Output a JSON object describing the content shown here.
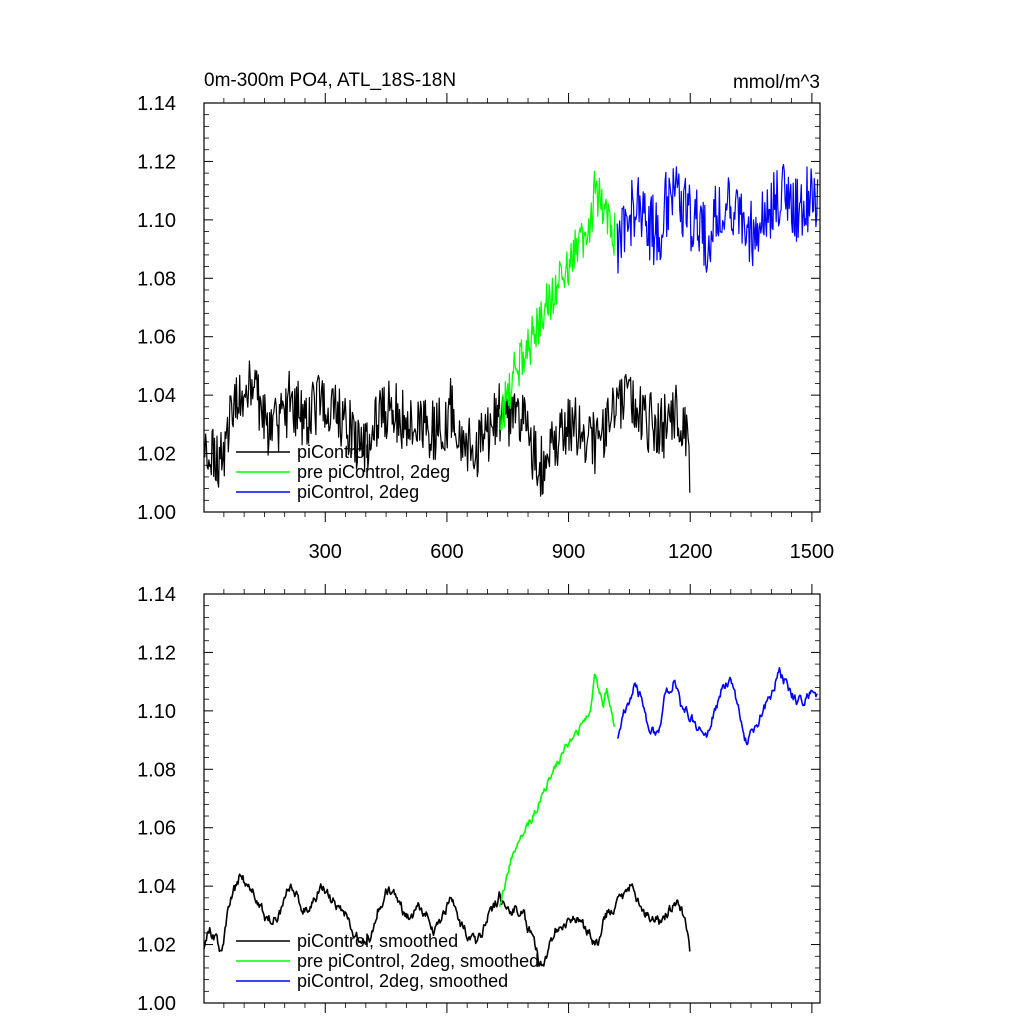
{
  "chart_data": [
    {
      "type": "line",
      "title": "0m-300m PO4, ATL_18S-18N",
      "units": "mmol/m^3",
      "xlim": [
        1,
        1520
      ],
      "ylim": [
        1.0,
        1.14
      ],
      "x_ticks": [
        300,
        600,
        900,
        1200,
        1500
      ],
      "y_ticks": [
        "1.00",
        "1.02",
        "1.04",
        "1.06",
        "1.08",
        "1.10",
        "1.12",
        "1.14"
      ],
      "show_x_tick_labels": true,
      "legend_position": "bottom-left",
      "grid": false,
      "series": [
        {
          "name": "piControl",
          "color": "#000000",
          "noise": 0.011,
          "x": [
            1,
            15,
            30,
            45,
            60,
            75,
            90,
            110,
            130,
            150,
            170,
            190,
            210,
            230,
            250,
            270,
            290,
            310,
            330,
            350,
            370,
            390,
            410,
            430,
            450,
            470,
            490,
            510,
            530,
            550,
            570,
            590,
            610,
            630,
            650,
            670,
            690,
            710,
            730,
            750,
            770,
            790,
            810,
            830,
            850,
            870,
            890,
            910,
            930,
            950,
            970,
            990,
            1010,
            1030,
            1050,
            1070,
            1090,
            1110,
            1130,
            1150,
            1170,
            1190,
            1200
          ],
          "values": [
            1.02,
            1.025,
            1.02,
            1.018,
            1.03,
            1.035,
            1.04,
            1.042,
            1.038,
            1.032,
            1.028,
            1.03,
            1.038,
            1.035,
            1.032,
            1.034,
            1.04,
            1.035,
            1.032,
            1.03,
            1.025,
            1.022,
            1.025,
            1.03,
            1.035,
            1.036,
            1.032,
            1.03,
            1.033,
            1.03,
            1.026,
            1.03,
            1.035,
            1.028,
            1.024,
            1.02,
            1.025,
            1.03,
            1.035,
            1.03,
            1.032,
            1.03,
            1.022,
            1.015,
            1.02,
            1.025,
            1.028,
            1.03,
            1.028,
            1.025,
            1.022,
            1.03,
            1.032,
            1.035,
            1.038,
            1.035,
            1.03,
            1.03,
            1.028,
            1.032,
            1.035,
            1.025,
            1.012
          ]
        },
        {
          "name": "pre piControl, 2deg",
          "color": "#00ff00",
          "noise": 0.008,
          "x": [
            730,
            745,
            760,
            775,
            790,
            805,
            820,
            835,
            850,
            865,
            880,
            895,
            910,
            925,
            940,
            955,
            965,
            975,
            985,
            995,
            1005,
            1015
          ],
          "values": [
            1.032,
            1.038,
            1.045,
            1.05,
            1.055,
            1.058,
            1.063,
            1.068,
            1.072,
            1.076,
            1.08,
            1.084,
            1.088,
            1.09,
            1.092,
            1.1,
            1.112,
            1.108,
            1.104,
            1.102,
            1.1,
            1.094
          ]
        },
        {
          "name": "piControl, 2deg",
          "color": "#0000ff",
          "noise": 0.012,
          "x": [
            1020,
            1040,
            1060,
            1080,
            1100,
            1120,
            1140,
            1160,
            1180,
            1200,
            1220,
            1240,
            1260,
            1280,
            1300,
            1320,
            1340,
            1360,
            1380,
            1400,
            1420,
            1440,
            1460,
            1480,
            1500,
            1515
          ],
          "values": [
            1.093,
            1.098,
            1.104,
            1.105,
            1.098,
            1.095,
            1.105,
            1.11,
            1.106,
            1.1,
            1.098,
            1.092,
            1.1,
            1.104,
            1.106,
            1.102,
            1.096,
            1.095,
            1.098,
            1.104,
            1.11,
            1.106,
            1.104,
            1.106,
            1.108,
            1.104
          ]
        }
      ]
    },
    {
      "type": "line",
      "title": "",
      "units": "",
      "xlim": [
        1,
        1520
      ],
      "ylim": [
        1.0,
        1.14
      ],
      "x_ticks": [
        300,
        600,
        900,
        1200,
        1500
      ],
      "y_ticks": [
        "1.00",
        "1.02",
        "1.04",
        "1.06",
        "1.08",
        "1.10",
        "1.12",
        "1.14"
      ],
      "show_x_tick_labels": false,
      "legend_position": "bottom-left",
      "grid": false,
      "series": [
        {
          "name": "piControl, smoothed",
          "color": "#000000",
          "noise": 0.004,
          "x": [
            1,
            15,
            30,
            45,
            60,
            75,
            90,
            110,
            130,
            150,
            170,
            190,
            210,
            230,
            250,
            270,
            290,
            310,
            330,
            350,
            370,
            390,
            410,
            430,
            450,
            470,
            490,
            510,
            530,
            550,
            570,
            590,
            610,
            630,
            650,
            670,
            690,
            710,
            730,
            750,
            770,
            790,
            810,
            830,
            850,
            870,
            890,
            910,
            930,
            950,
            970,
            990,
            1010,
            1030,
            1050,
            1070,
            1090,
            1110,
            1130,
            1150,
            1170,
            1190,
            1200
          ],
          "values": [
            1.02,
            1.025,
            1.022,
            1.016,
            1.032,
            1.038,
            1.044,
            1.04,
            1.036,
            1.03,
            1.028,
            1.032,
            1.04,
            1.036,
            1.032,
            1.035,
            1.04,
            1.036,
            1.033,
            1.03,
            1.024,
            1.02,
            1.022,
            1.032,
            1.038,
            1.037,
            1.032,
            1.029,
            1.034,
            1.03,
            1.025,
            1.029,
            1.036,
            1.028,
            1.023,
            1.02,
            1.025,
            1.032,
            1.037,
            1.031,
            1.033,
            1.03,
            1.022,
            1.013,
            1.018,
            1.025,
            1.028,
            1.03,
            1.027,
            1.024,
            1.02,
            1.03,
            1.033,
            1.036,
            1.04,
            1.036,
            1.03,
            1.03,
            1.027,
            1.032,
            1.036,
            1.027,
            1.016
          ]
        },
        {
          "name": "pre piControl, 2deg, smoothed",
          "color": "#00ff00",
          "noise": 0.003,
          "x": [
            730,
            745,
            760,
            775,
            790,
            805,
            820,
            835,
            850,
            865,
            880,
            895,
            910,
            925,
            940,
            955,
            965,
            975,
            985,
            995,
            1005,
            1015
          ],
          "values": [
            1.034,
            1.042,
            1.05,
            1.054,
            1.058,
            1.062,
            1.066,
            1.072,
            1.076,
            1.08,
            1.084,
            1.088,
            1.09,
            1.093,
            1.096,
            1.102,
            1.114,
            1.106,
            1.102,
            1.108,
            1.1,
            1.094
          ]
        },
        {
          "name": "piControl, 2deg, smoothed",
          "color": "#0000ff",
          "noise": 0.004,
          "x": [
            1020,
            1040,
            1060,
            1080,
            1100,
            1120,
            1140,
            1160,
            1180,
            1200,
            1220,
            1240,
            1260,
            1280,
            1300,
            1320,
            1340,
            1360,
            1380,
            1400,
            1420,
            1440,
            1460,
            1480,
            1500,
            1515
          ],
          "values": [
            1.092,
            1.1,
            1.108,
            1.104,
            1.094,
            1.092,
            1.106,
            1.11,
            1.1,
            1.098,
            1.095,
            1.09,
            1.1,
            1.108,
            1.11,
            1.1,
            1.088,
            1.094,
            1.1,
            1.106,
            1.114,
            1.108,
            1.104,
            1.104,
            1.108,
            1.104
          ]
        }
      ]
    }
  ]
}
